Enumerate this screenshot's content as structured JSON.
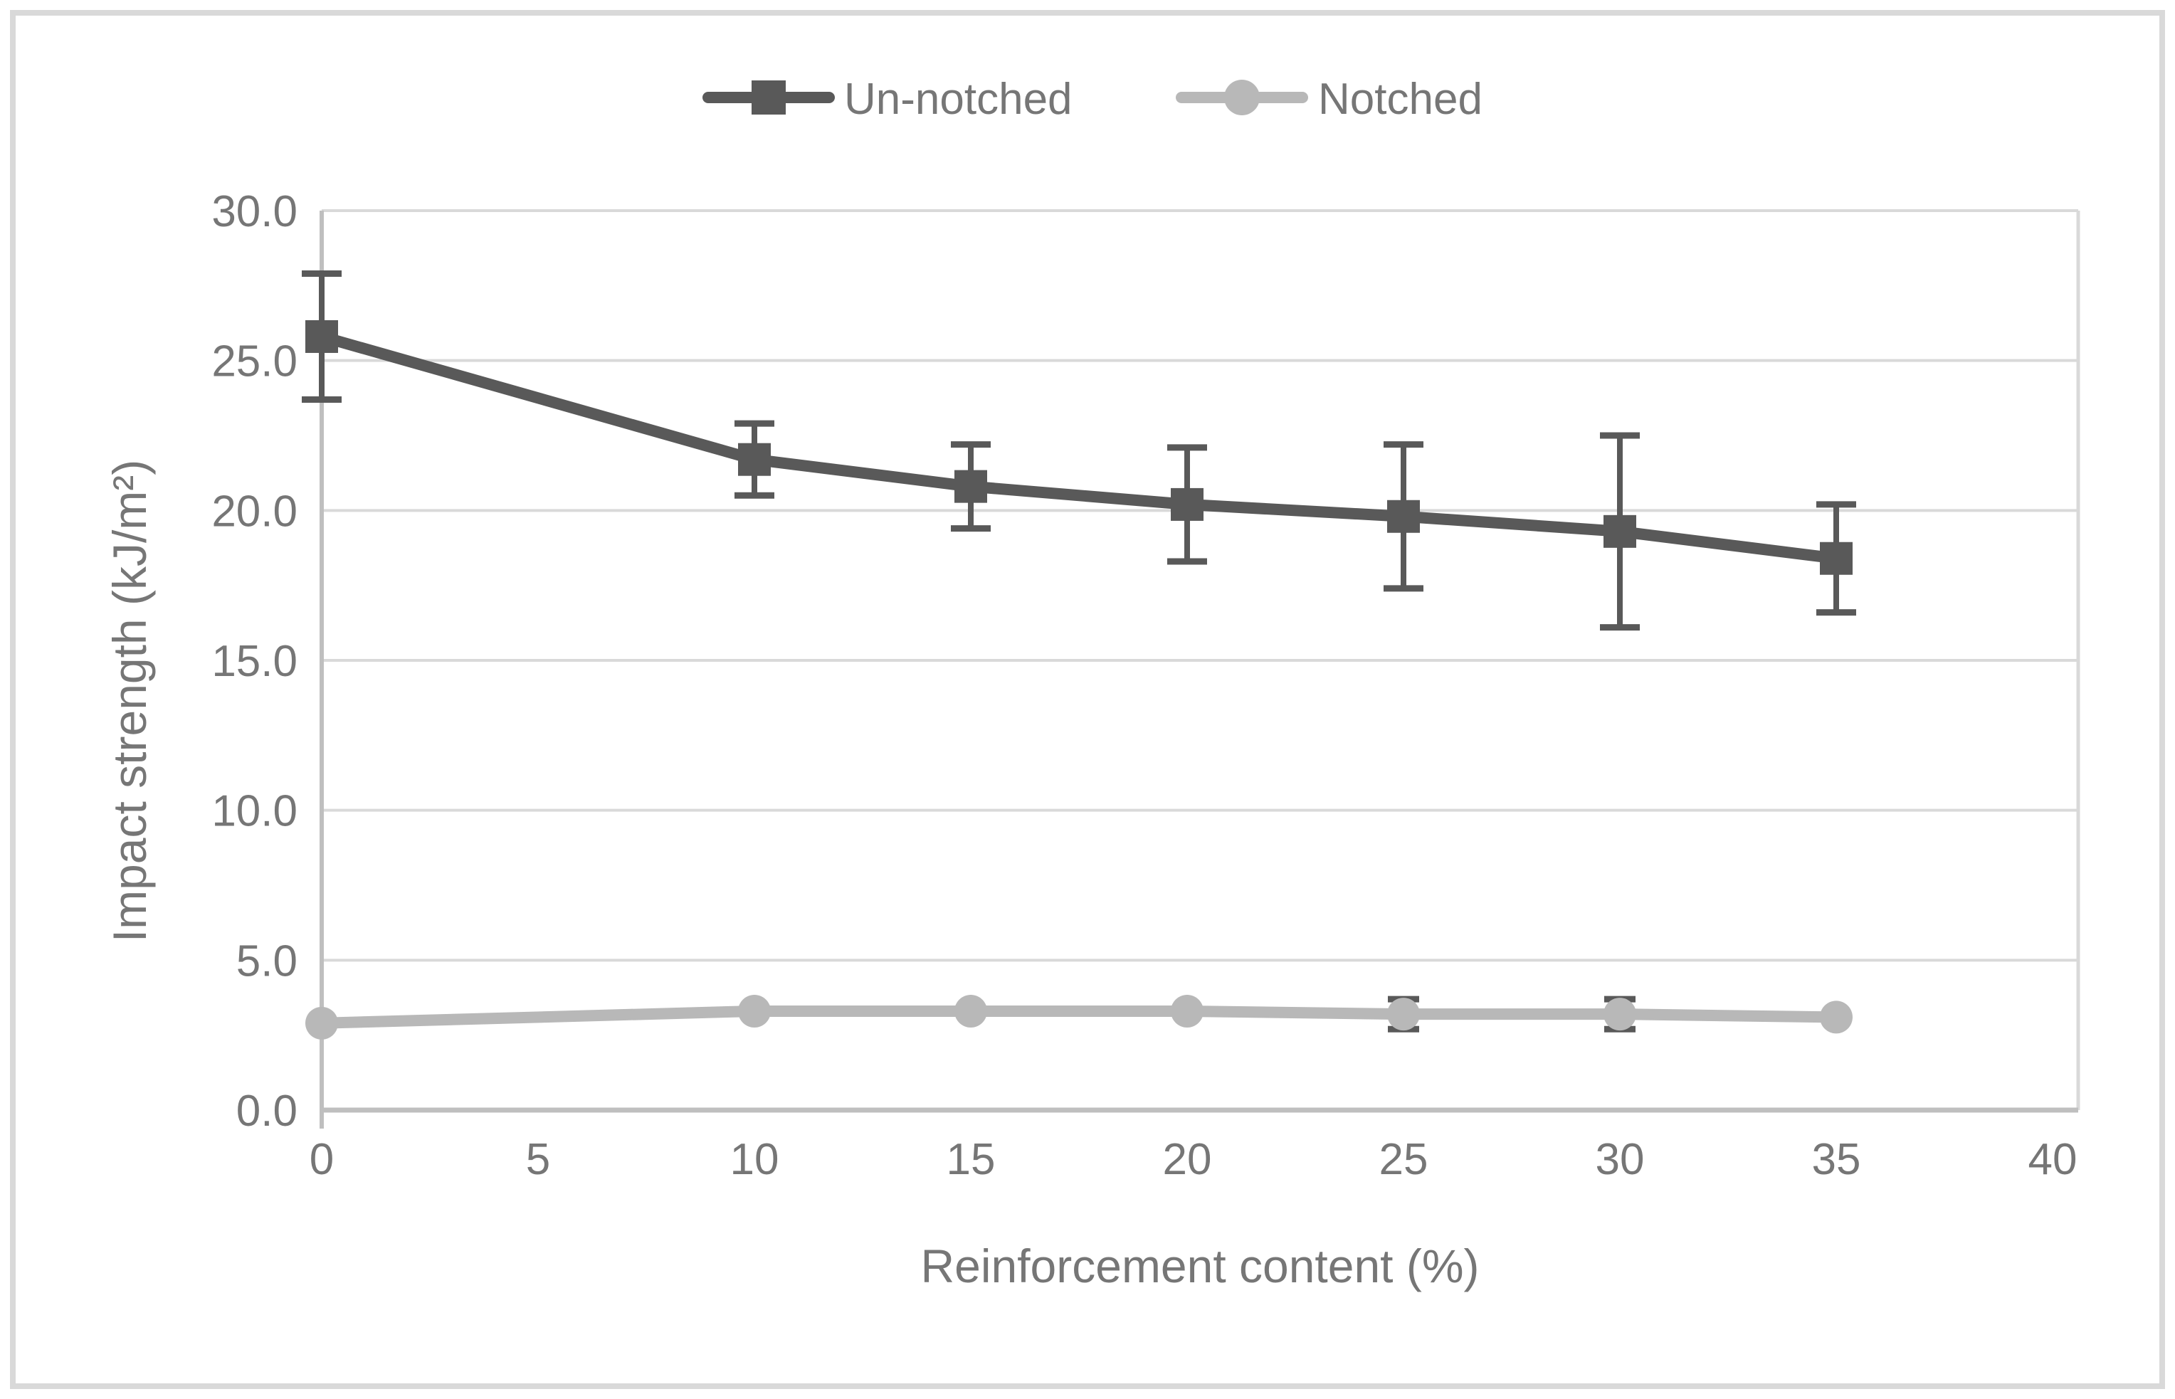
{
  "chart_data": {
    "type": "line",
    "title": "",
    "xlabel": "Reinforcement content (%)",
    "ylabel": "Impact strength (kJ/m²)",
    "x": [
      0,
      10,
      15,
      20,
      25,
      30,
      35
    ],
    "series": [
      {
        "name": "Un-notched",
        "marker": "square",
        "color": "#595959",
        "values": [
          25.8,
          21.7,
          20.8,
          20.2,
          19.8,
          19.3,
          18.4
        ],
        "error": [
          2.1,
          1.2,
          1.4,
          1.9,
          2.4,
          3.2,
          1.8
        ]
      },
      {
        "name": "Notched",
        "marker": "circle",
        "color": "#b8b8b8",
        "values": [
          2.9,
          3.3,
          3.3,
          3.3,
          3.2,
          3.2,
          3.1
        ],
        "error": [
          0,
          0,
          0,
          0,
          0.5,
          0.5,
          0
        ]
      }
    ],
    "x_ticks": [
      "0",
      "5",
      "10",
      "15",
      "20",
      "25",
      "30",
      "35",
      "40"
    ],
    "x_tick_values": [
      0,
      5,
      10,
      15,
      20,
      25,
      30,
      35,
      40
    ],
    "y_ticks": [
      "0.0",
      "5.0",
      "10.0",
      "15.0",
      "20.0",
      "25.0",
      "30.0"
    ],
    "y_tick_values": [
      0,
      5,
      10,
      15,
      20,
      25,
      30
    ],
    "xlim": [
      0,
      40
    ],
    "ylim": [
      0,
      30
    ],
    "grid": true,
    "legend_position": "top-center"
  },
  "colors": {
    "series_dark": "#595959",
    "series_light": "#b8b8b8",
    "gridline": "#d9d9d9",
    "axis_line": "#bfbfbf",
    "text": "#767676",
    "frame_border": "#d9d9d9",
    "background": "#ffffff"
  },
  "legend": {
    "unnotched_label": "Un-notched",
    "notched_label": "Notched"
  }
}
